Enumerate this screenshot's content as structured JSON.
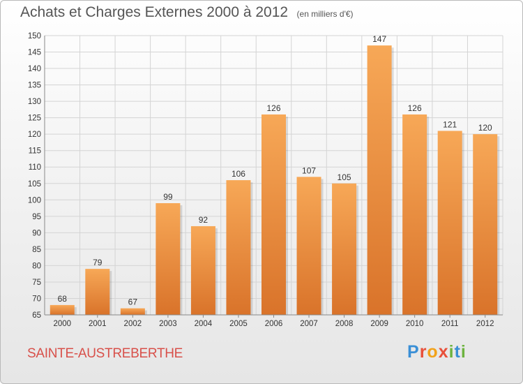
{
  "header": {
    "title": "Achats et Charges Externes 2000 à 2012",
    "subtitle": "(en milliers d'€)"
  },
  "footer": {
    "commune": "SAINTE-AUSTREBERTHE",
    "logo_letters": [
      "P",
      "r",
      "o",
      "x",
      "i",
      "t",
      "i"
    ],
    "logo_colors": [
      "#3a8fd6",
      "#e8503a",
      "#f2a21a",
      "#e8503a",
      "#6db33f",
      "#3a8fd6",
      "#6db33f"
    ]
  },
  "colors": {
    "bar_light": "#f7a857",
    "bar_dark": "#d9732a",
    "grid": "#d4d4d4",
    "axis_text": "#333333"
  },
  "chart_data": {
    "type": "bar",
    "title": "Achats et Charges Externes 2000 à 2012",
    "subtitle": "(en milliers d'€)",
    "categories": [
      "2000",
      "2001",
      "2002",
      "2003",
      "2004",
      "2005",
      "2006",
      "2007",
      "2008",
      "2009",
      "2010",
      "2011",
      "2012"
    ],
    "values": [
      68,
      79,
      67,
      99,
      92,
      106,
      126,
      107,
      105,
      147,
      126,
      121,
      120
    ],
    "ylim": [
      65,
      150
    ],
    "yticks": [
      65,
      70,
      75,
      80,
      85,
      90,
      95,
      100,
      105,
      110,
      115,
      120,
      125,
      130,
      135,
      140,
      145,
      150
    ],
    "grid": true,
    "data_labels": true
  }
}
